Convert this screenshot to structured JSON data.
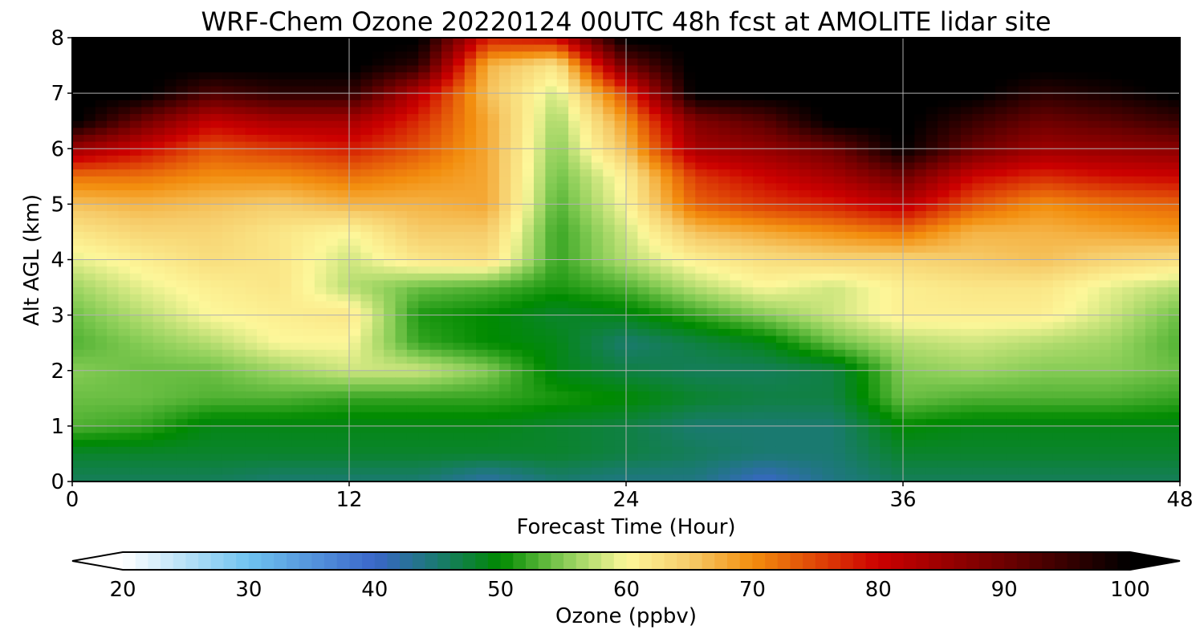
{
  "chart_data": {
    "type": "heatmap",
    "title": "WRF-Chem Ozone  20220124 00UTC 48h fcst at AMOLITE lidar site",
    "xlabel": "Forecast Time (Hour)",
    "ylabel": "Alt AGL (km)",
    "xlim": [
      0,
      48
    ],
    "ylim": [
      0,
      8
    ],
    "x_ticks": [
      0,
      12,
      24,
      36,
      48
    ],
    "y_ticks": [
      0,
      1,
      2,
      3,
      4,
      5,
      6,
      7,
      8
    ],
    "grid": true,
    "x": [
      0,
      3,
      6,
      9,
      12,
      15,
      18,
      21,
      24,
      27,
      30,
      33,
      36,
      39,
      42,
      45,
      48
    ],
    "y": [
      0,
      0.5,
      1,
      1.5,
      2,
      2.5,
      3,
      3.5,
      4,
      4.5,
      5,
      5.5,
      6,
      6.5,
      7,
      7.5,
      8
    ],
    "z": [
      [
        46,
        46,
        46,
        45,
        45,
        45,
        42,
        45,
        44,
        44,
        40,
        44,
        46,
        46,
        46,
        46,
        46
      ],
      [
        48,
        48,
        48,
        48,
        48,
        48,
        48,
        48,
        47,
        46,
        45,
        45,
        48,
        48,
        48,
        48,
        48
      ],
      [
        53,
        52,
        49,
        49,
        49,
        49,
        49,
        48,
        47,
        45,
        45,
        45,
        50,
        49,
        49,
        49,
        49
      ],
      [
        54,
        54,
        53,
        53,
        52,
        52,
        52,
        51,
        50,
        48,
        47,
        47,
        54,
        53,
        53,
        53,
        52
      ],
      [
        55,
        54,
        54,
        56,
        58,
        58,
        55,
        49,
        47,
        46,
        46,
        47,
        55,
        56,
        55,
        55,
        54
      ],
      [
        53,
        55,
        57,
        60,
        60,
        52,
        50,
        49,
        45,
        47,
        49,
        54,
        57,
        58,
        57,
        56,
        53
      ],
      [
        54,
        57,
        60,
        61,
        62,
        51,
        50,
        48,
        49,
        52,
        55,
        58,
        61,
        61,
        61,
        58,
        54
      ],
      [
        56,
        59,
        61,
        62,
        57,
        54,
        53,
        51,
        53,
        57,
        60,
        58,
        61,
        62,
        62,
        59,
        57
      ],
      [
        59,
        61,
        63,
        62,
        58,
        62,
        63,
        52,
        57,
        61,
        63,
        64,
        64,
        65,
        66,
        64,
        63
      ],
      [
        62,
        64,
        64,
        62,
        60,
        65,
        65,
        52,
        58,
        66,
        68,
        70,
        72,
        67,
        67,
        68,
        69
      ],
      [
        66,
        67,
        66,
        65,
        67,
        67,
        68,
        53,
        60,
        73,
        76,
        78,
        82,
        74,
        70,
        72,
        73
      ],
      [
        72,
        72,
        70,
        70,
        72,
        70,
        68,
        54,
        61,
        76,
        80,
        84,
        90,
        80,
        77,
        79,
        80
      ],
      [
        85,
        80,
        74,
        76,
        78,
        74,
        68,
        55,
        66,
        84,
        86,
        90,
        100,
        90,
        85,
        86,
        87
      ],
      [
        101,
        90,
        81,
        84,
        84,
        77,
        68,
        56,
        69,
        88,
        92,
        101,
        101,
        95,
        90,
        92,
        95
      ],
      [
        101,
        101,
        93,
        96,
        96,
        82,
        66,
        58,
        75,
        101,
        101,
        101,
        101,
        101,
        96,
        98,
        101
      ],
      [
        101,
        101,
        101,
        101,
        101,
        96,
        67,
        62,
        90,
        101,
        101,
        101,
        101,
        101,
        101,
        101,
        101
      ],
      [
        101,
        101,
        101,
        101,
        101,
        101,
        78,
        80,
        101,
        101,
        101,
        101,
        101,
        101,
        101,
        101,
        101
      ]
    ],
    "colorbar": {
      "label": "Ozone  (ppbv)",
      "min": 20,
      "max": 100,
      "ticks": [
        20,
        30,
        40,
        50,
        60,
        70,
        80,
        90,
        100
      ],
      "extend": "both",
      "stops": [
        {
          "v": 20,
          "c": "#ffffff"
        },
        {
          "v": 30,
          "c": "#6fc3f0"
        },
        {
          "v": 40,
          "c": "#3a66c9"
        },
        {
          "v": 45,
          "c": "#1a7a70"
        },
        {
          "v": 50,
          "c": "#008a00"
        },
        {
          "v": 55,
          "c": "#86cc55"
        },
        {
          "v": 60,
          "c": "#fdf79a"
        },
        {
          "v": 65,
          "c": "#f6cc6a"
        },
        {
          "v": 70,
          "c": "#f38e0e"
        },
        {
          "v": 80,
          "c": "#cc0000"
        },
        {
          "v": 90,
          "c": "#6d0000"
        },
        {
          "v": 100,
          "c": "#000000"
        }
      ]
    }
  }
}
